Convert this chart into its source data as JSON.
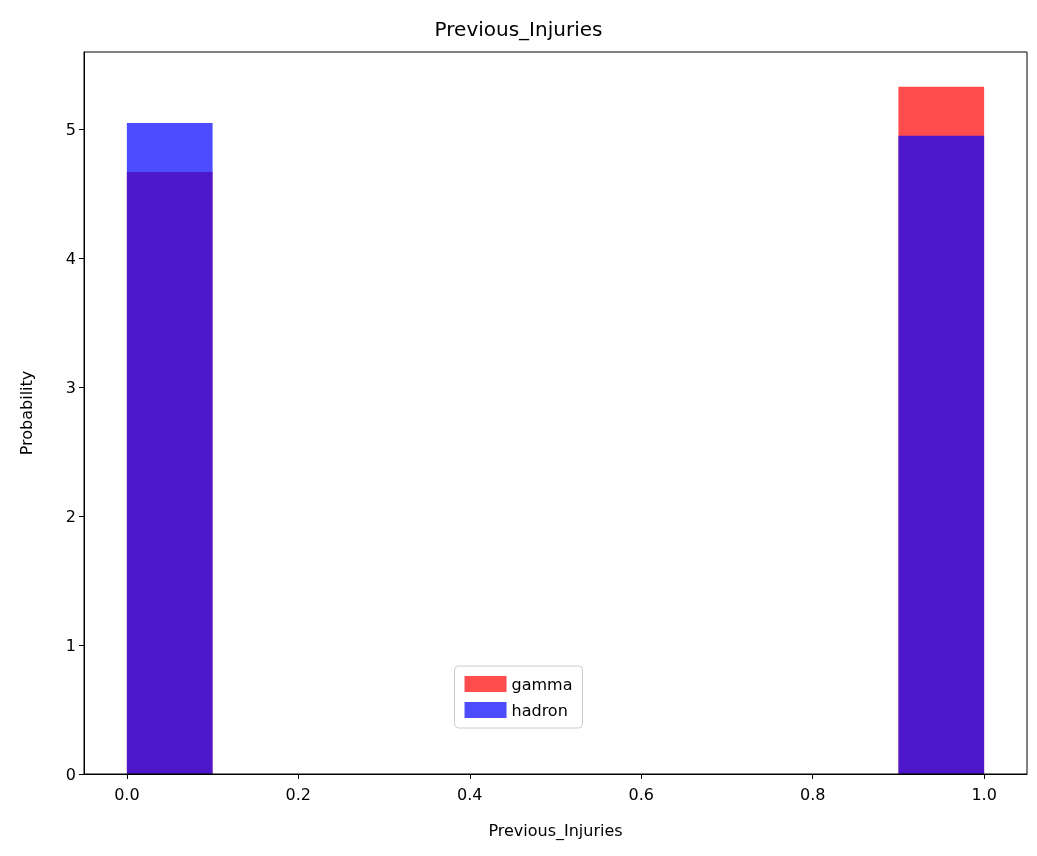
{
  "chart_data": {
    "type": "histogram",
    "title": "Previous_Injuries",
    "xlabel": "Previous_Injuries",
    "ylabel": "Probability",
    "bins": [
      0,
      0.1,
      0.2,
      0.3,
      0.4,
      0.5,
      0.6,
      0.7,
      0.8,
      0.9,
      1.0
    ],
    "series": [
      {
        "name": "gamma",
        "color": "#ff4d4d",
        "values": [
          4.67,
          0,
          0,
          0,
          0,
          0,
          0,
          0,
          0,
          5.33
        ]
      },
      {
        "name": "hadron",
        "color": "#4d4dff",
        "values": [
          5.05,
          0,
          0,
          0,
          0,
          0,
          0,
          0,
          0,
          4.95
        ]
      }
    ],
    "xlim": [
      -0.05,
      1.05
    ],
    "ylim": [
      0,
      5.6
    ],
    "xticks": [
      {
        "value": 0,
        "label": "0.0"
      },
      0.2,
      0.4,
      0.6,
      0.8,
      {
        "value": 1,
        "label": "1.0"
      }
    ],
    "yticks": [
      0,
      1,
      2,
      3,
      4,
      5
    ],
    "grid": false,
    "legend": "bottom"
  }
}
